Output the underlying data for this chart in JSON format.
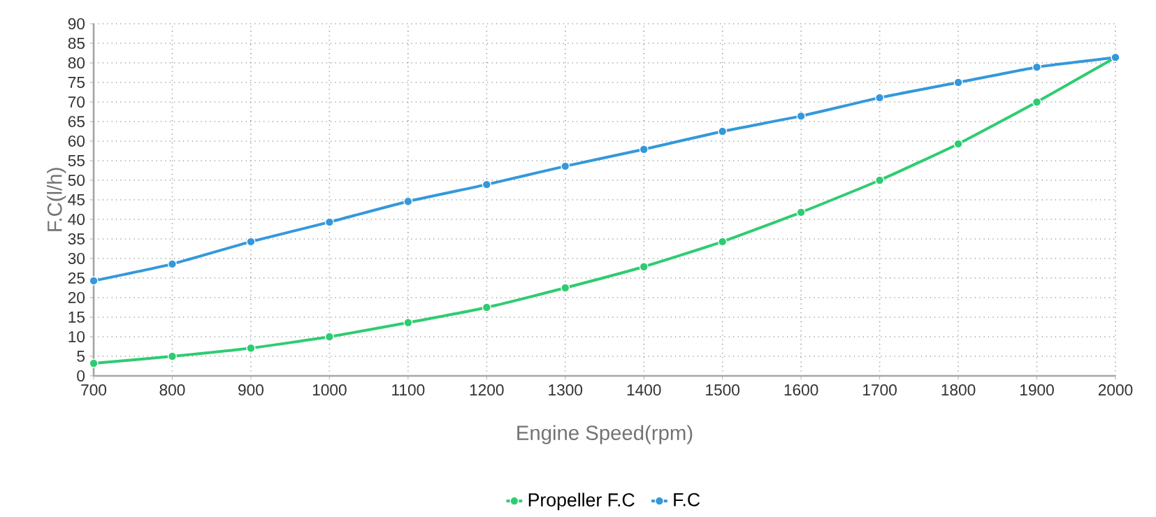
{
  "chart_data": {
    "type": "line",
    "xlabel": "Engine Speed(rpm)",
    "ylabel": "F.C(l/h)",
    "x": [
      700,
      800,
      900,
      1000,
      1100,
      1200,
      1300,
      1400,
      1500,
      1600,
      1700,
      1800,
      1900,
      2000
    ],
    "series": [
      {
        "name": "Propeller F.C",
        "color": "#2ecc71",
        "values": [
          3.2,
          5,
          7.1,
          10,
          13.6,
          17.5,
          22.5,
          27.9,
          34.3,
          41.8,
          50,
          59.3,
          70,
          81.4
        ]
      },
      {
        "name": "F.C",
        "color": "#3498db",
        "values": [
          24.3,
          28.6,
          34.3,
          39.3,
          44.6,
          48.9,
          53.6,
          57.9,
          62.5,
          66.4,
          71.1,
          75,
          78.9,
          81.4
        ]
      }
    ],
    "xlim": [
      700,
      2000
    ],
    "ylim": [
      0,
      90
    ],
    "xticks": [
      700,
      800,
      900,
      1000,
      1100,
      1200,
      1300,
      1400,
      1500,
      1600,
      1700,
      1800,
      1900,
      2000
    ],
    "yticks": [
      0,
      5,
      10,
      15,
      20,
      25,
      30,
      35,
      40,
      45,
      50,
      55,
      60,
      65,
      70,
      75,
      80,
      85,
      90
    ],
    "grid": true,
    "legend": "bottom",
    "marker": "circle",
    "line_style": "solid"
  }
}
